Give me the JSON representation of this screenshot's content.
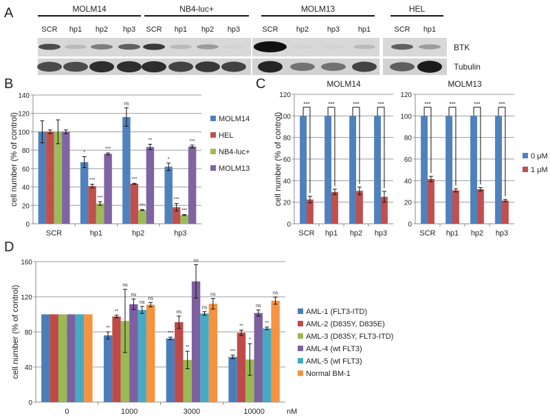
{
  "panel_labels": [
    "A",
    "B",
    "C",
    "D"
  ],
  "blot": {
    "groups": [
      "MOLM14",
      "NB4-luc+",
      "MOLM13",
      "HEL"
    ],
    "lanes": [
      [
        "SCR",
        "hp1",
        "hp2",
        "hp3"
      ],
      [
        "SCR",
        "hp1",
        "hp2",
        "hp3"
      ],
      [
        "SCR",
        "hp2",
        "hp3",
        "hp1"
      ],
      [
        "SCR",
        "hp1"
      ]
    ],
    "rows": [
      "BTK",
      "Tubulin"
    ],
    "btk_band_intensity": [
      [
        0.7,
        0.15,
        0.45,
        0.6
      ],
      [
        0.8,
        0.15,
        0.3,
        0.02
      ],
      [
        1.0,
        0.02,
        0.02,
        0.15
      ],
      [
        0.6,
        0.3
      ]
    ],
    "tubulin_band_intensity": [
      [
        0.7,
        0.7,
        0.85,
        0.85
      ],
      [
        0.85,
        0.75,
        0.8,
        0.75
      ],
      [
        0.9,
        0.5,
        0.5,
        0.75
      ],
      [
        0.6,
        0.95
      ]
    ]
  },
  "chart_data": [
    {
      "id": "B",
      "type": "bar",
      "title": "",
      "categories": [
        "SCR",
        "hp1",
        "hp2",
        "hp3"
      ],
      "ylabel": "cell number (% of control)",
      "xlabel": "",
      "ylim": [
        0,
        140
      ],
      "yticks": [
        0,
        20,
        40,
        60,
        80,
        100,
        120,
        140
      ],
      "grid": true,
      "legend": "right",
      "series": [
        {
          "name": "MOLM14",
          "color": "#4f81bd",
          "values": [
            100,
            67,
            116,
            62
          ],
          "errors": [
            12,
            6,
            10,
            4
          ],
          "sig": [
            "",
            "*",
            "ns",
            "*"
          ]
        },
        {
          "name": "HEL",
          "color": "#c0504d",
          "values": [
            100,
            41,
            43.5,
            18
          ],
          "errors": [
            2,
            2,
            0.5,
            4
          ],
          "sig": [
            "",
            "***",
            "***",
            "***"
          ]
        },
        {
          "name": "NB4-luc+",
          "color": "#9bbb59",
          "values": [
            100,
            22,
            15,
            9.5
          ],
          "errors": [
            13,
            2,
            0.5,
            0.5
          ],
          "sig": [
            "",
            "***",
            "***",
            "***"
          ]
        },
        {
          "name": "MOLM13",
          "color": "#8064a2",
          "values": [
            100,
            76,
            83.5,
            84
          ],
          "errors": [
            2,
            1,
            3,
            1.5
          ],
          "sig": [
            "",
            "***",
            "**",
            "***"
          ]
        }
      ]
    },
    {
      "id": "C1",
      "type": "bar",
      "title": "MOLM14",
      "categories": [
        "SCR",
        "hp1",
        "hp2",
        "hp3"
      ],
      "ylabel": "cell number (% of control)",
      "xlabel": "",
      "ylim": [
        0,
        120
      ],
      "yticks": [
        0,
        20,
        40,
        60,
        80,
        100,
        120
      ],
      "grid": true,
      "legend": "none",
      "brackets": [
        "***",
        "***",
        "***",
        "***"
      ],
      "series": [
        {
          "name": "0 μM",
          "color": "#4f81bd",
          "values": [
            100,
            100,
            100,
            100
          ],
          "errors": [
            0,
            0,
            0,
            0
          ]
        },
        {
          "name": "1 μM",
          "color": "#c0504d",
          "values": [
            22.5,
            29.5,
            30.5,
            25
          ],
          "errors": [
            3,
            2.5,
            3.5,
            5
          ]
        }
      ]
    },
    {
      "id": "C2",
      "type": "bar",
      "title": "MOLM13",
      "categories": [
        "SCR",
        "hp1",
        "hp2",
        "hp3"
      ],
      "ylabel": "",
      "xlabel": "",
      "ylim": [
        0,
        120
      ],
      "yticks": [
        0,
        20,
        40,
        60,
        80,
        100,
        120
      ],
      "grid": true,
      "legend": "right",
      "brackets": [
        "***",
        "***",
        "***",
        "***"
      ],
      "series": [
        {
          "name": "0 μM",
          "color": "#4f81bd",
          "values": [
            100,
            100,
            100,
            100
          ],
          "errors": [
            0,
            0,
            0,
            0
          ]
        },
        {
          "name": "1 μM",
          "color": "#c0504d",
          "values": [
            41.5,
            31,
            32,
            21.5
          ],
          "errors": [
            2.5,
            1.5,
            1.5,
            1
          ]
        }
      ]
    },
    {
      "id": "D",
      "type": "bar",
      "title": "",
      "categories": [
        "0",
        "1000",
        "3000",
        "10000"
      ],
      "ylabel": "cell number (% of control)",
      "xlabel": "nM",
      "ylim": [
        0,
        160
      ],
      "yticks": [
        0,
        40,
        80,
        120,
        160
      ],
      "grid": true,
      "legend": "right",
      "series": [
        {
          "name": "AML-1 (FLT3-ITD)",
          "color": "#4a7ebb",
          "values": [
            100,
            76,
            72.5,
            51.5
          ],
          "errors": [
            0,
            4,
            1.5,
            2
          ],
          "sig": [
            "",
            "**",
            "***",
            "***"
          ]
        },
        {
          "name": "AML-2 (D835Y, D835E)",
          "color": "#be4b48",
          "values": [
            100,
            97.5,
            91,
            79
          ],
          "errors": [
            0,
            1.5,
            7,
            3
          ],
          "sig": [
            "",
            "**",
            "ns",
            "**"
          ]
        },
        {
          "name": "AML-3 (D835Y, FLT3-ITD)",
          "color": "#98b954",
          "values": [
            100,
            92.5,
            48,
            48.5
          ],
          "errors": [
            0,
            36,
            10,
            18
          ],
          "sig": [
            "",
            "ns",
            "**",
            "*"
          ]
        },
        {
          "name": "AML-4 (wt FLT3)",
          "color": "#7d60a0",
          "values": [
            100,
            111.5,
            137.5,
            101.5
          ],
          "errors": [
            0,
            6,
            19,
            3.5
          ],
          "sig": [
            "",
            "ns",
            "ns",
            "ns"
          ]
        },
        {
          "name": "AML-5 (wt FLT3)",
          "color": "#46aac5",
          "values": [
            100,
            105,
            101,
            84
          ],
          "errors": [
            0,
            4,
            2,
            1.5
          ],
          "sig": [
            "",
            "ns",
            "ns",
            "**"
          ]
        },
        {
          "name": "Normal BM-1",
          "color": "#f69240",
          "values": [
            100,
            111,
            112,
            115.5
          ],
          "errors": [
            0,
            2.5,
            6,
            4
          ],
          "sig": [
            "",
            "ns",
            "ns",
            "ns"
          ]
        }
      ]
    }
  ]
}
